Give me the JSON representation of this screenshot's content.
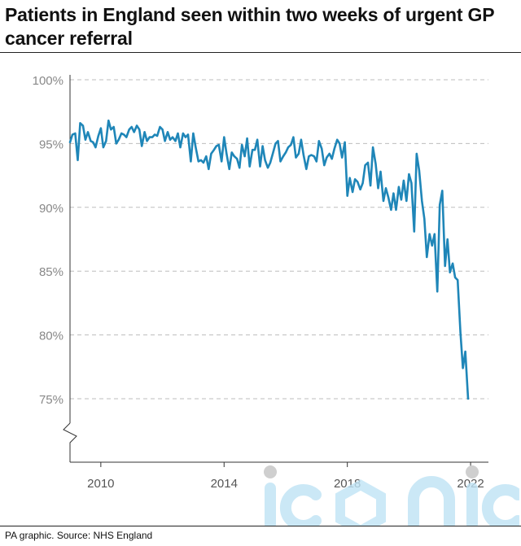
{
  "title": "Patients in England seen within two weeks of urgent GP cancer referral",
  "source": "PA graphic. Source: NHS England",
  "watermark": "iconic",
  "colors": {
    "line": "#1f86b8",
    "grid": "#bdbdbd",
    "axis": "#333333",
    "tick_text": "#888888"
  },
  "chart_data": {
    "type": "line",
    "title": "Patients in England seen within two weeks of urgent GP cancer referral",
    "xlabel": "",
    "ylabel": "",
    "y_ticks": [
      75,
      80,
      85,
      90,
      95,
      100
    ],
    "y_tick_labels": [
      "75%",
      "80%",
      "85%",
      "90%",
      "95%",
      "100%"
    ],
    "x_ticks": [
      2010,
      2014,
      2018,
      2022
    ],
    "x_tick_labels": [
      "2010",
      "2014",
      "2018",
      "2022"
    ],
    "xlim": [
      2009.0,
      2022.5
    ],
    "ylim": [
      70,
      101
    ],
    "y_axis_break": true,
    "grid": "horizontal dashed",
    "series": [
      {
        "values": [
          [
            2009.0,
            95.1
          ],
          [
            2009.08,
            95.7
          ],
          [
            2009.17,
            95.8
          ],
          [
            2009.25,
            93.7
          ],
          [
            2009.33,
            96.6
          ],
          [
            2009.42,
            96.4
          ],
          [
            2009.5,
            95.3
          ],
          [
            2009.58,
            95.9
          ],
          [
            2009.67,
            95.2
          ],
          [
            2009.75,
            95.1
          ],
          [
            2009.83,
            94.7
          ],
          [
            2009.92,
            95.6
          ],
          [
            2010.0,
            96.2
          ],
          [
            2010.08,
            94.7
          ],
          [
            2010.17,
            95.2
          ],
          [
            2010.25,
            96.8
          ],
          [
            2010.33,
            96.1
          ],
          [
            2010.42,
            96.3
          ],
          [
            2010.5,
            95.0
          ],
          [
            2010.58,
            95.3
          ],
          [
            2010.67,
            95.8
          ],
          [
            2010.75,
            95.7
          ],
          [
            2010.83,
            95.5
          ],
          [
            2010.92,
            96.1
          ],
          [
            2011.0,
            96.3
          ],
          [
            2011.08,
            95.9
          ],
          [
            2011.17,
            96.4
          ],
          [
            2011.25,
            96.1
          ],
          [
            2011.33,
            94.8
          ],
          [
            2011.42,
            95.9
          ],
          [
            2011.5,
            95.2
          ],
          [
            2011.58,
            95.5
          ],
          [
            2011.67,
            95.5
          ],
          [
            2011.75,
            95.7
          ],
          [
            2011.83,
            95.6
          ],
          [
            2011.92,
            96.3
          ],
          [
            2012.0,
            96.1
          ],
          [
            2012.08,
            95.2
          ],
          [
            2012.17,
            95.9
          ],
          [
            2012.25,
            95.3
          ],
          [
            2012.33,
            95.5
          ],
          [
            2012.42,
            95.2
          ],
          [
            2012.5,
            95.8
          ],
          [
            2012.58,
            94.7
          ],
          [
            2012.67,
            95.8
          ],
          [
            2012.75,
            95.5
          ],
          [
            2012.83,
            95.7
          ],
          [
            2012.92,
            93.6
          ],
          [
            2013.0,
            95.8
          ],
          [
            2013.08,
            94.7
          ],
          [
            2013.17,
            93.6
          ],
          [
            2013.25,
            93.7
          ],
          [
            2013.33,
            93.5
          ],
          [
            2013.42,
            94.0
          ],
          [
            2013.5,
            93.0
          ],
          [
            2013.58,
            94.2
          ],
          [
            2013.67,
            94.5
          ],
          [
            2013.75,
            94.8
          ],
          [
            2013.83,
            94.9
          ],
          [
            2013.92,
            93.6
          ],
          [
            2014.0,
            95.5
          ],
          [
            2014.08,
            94.2
          ],
          [
            2014.17,
            93.0
          ],
          [
            2014.25,
            94.3
          ],
          [
            2014.33,
            94.0
          ],
          [
            2014.42,
            93.8
          ],
          [
            2014.5,
            93.1
          ],
          [
            2014.58,
            94.9
          ],
          [
            2014.67,
            94.0
          ],
          [
            2014.75,
            95.4
          ],
          [
            2014.83,
            93.2
          ],
          [
            2014.92,
            94.5
          ],
          [
            2015.0,
            94.5
          ],
          [
            2015.08,
            95.3
          ],
          [
            2015.17,
            93.2
          ],
          [
            2015.25,
            94.8
          ],
          [
            2015.33,
            93.7
          ],
          [
            2015.42,
            93.1
          ],
          [
            2015.5,
            93.5
          ],
          [
            2015.58,
            94.2
          ],
          [
            2015.67,
            95.0
          ],
          [
            2015.75,
            95.2
          ],
          [
            2015.83,
            93.6
          ],
          [
            2015.92,
            94.0
          ],
          [
            2016.0,
            94.3
          ],
          [
            2016.08,
            94.7
          ],
          [
            2016.17,
            94.9
          ],
          [
            2016.25,
            95.5
          ],
          [
            2016.33,
            93.9
          ],
          [
            2016.42,
            94.2
          ],
          [
            2016.5,
            95.3
          ],
          [
            2016.58,
            94.1
          ],
          [
            2016.67,
            93.0
          ],
          [
            2016.75,
            94.0
          ],
          [
            2016.83,
            94.1
          ],
          [
            2016.92,
            94.0
          ],
          [
            2017.0,
            93.6
          ],
          [
            2017.08,
            95.2
          ],
          [
            2017.17,
            94.6
          ],
          [
            2017.25,
            93.3
          ],
          [
            2017.33,
            93.9
          ],
          [
            2017.42,
            94.2
          ],
          [
            2017.5,
            93.8
          ],
          [
            2017.58,
            94.6
          ],
          [
            2017.67,
            95.3
          ],
          [
            2017.75,
            95.0
          ],
          [
            2017.83,
            93.9
          ],
          [
            2017.92,
            95.1
          ],
          [
            2018.0,
            90.9
          ],
          [
            2018.08,
            92.3
          ],
          [
            2018.17,
            91.2
          ],
          [
            2018.25,
            92.2
          ],
          [
            2018.33,
            92.0
          ],
          [
            2018.42,
            91.4
          ],
          [
            2018.5,
            91.9
          ],
          [
            2018.58,
            93.3
          ],
          [
            2018.67,
            93.5
          ],
          [
            2018.75,
            91.7
          ],
          [
            2018.83,
            94.7
          ],
          [
            2018.92,
            93.4
          ],
          [
            2019.0,
            91.5
          ],
          [
            2019.08,
            92.8
          ],
          [
            2019.17,
            90.5
          ],
          [
            2019.25,
            91.5
          ],
          [
            2019.33,
            90.8
          ],
          [
            2019.42,
            89.8
          ],
          [
            2019.5,
            91.1
          ],
          [
            2019.58,
            89.8
          ],
          [
            2019.67,
            91.6
          ],
          [
            2019.75,
            90.6
          ],
          [
            2019.83,
            92.1
          ],
          [
            2019.92,
            90.5
          ],
          [
            2020.0,
            92.6
          ],
          [
            2020.08,
            91.9
          ],
          [
            2020.17,
            88.1
          ],
          [
            2020.25,
            94.2
          ],
          [
            2020.33,
            92.9
          ],
          [
            2020.42,
            90.5
          ],
          [
            2020.5,
            89.1
          ],
          [
            2020.58,
            86.1
          ],
          [
            2020.67,
            87.9
          ],
          [
            2020.75,
            87.0
          ],
          [
            2020.83,
            87.9
          ],
          [
            2020.92,
            83.4
          ],
          [
            2021.0,
            90.2
          ],
          [
            2021.08,
            91.3
          ],
          [
            2021.17,
            85.4
          ],
          [
            2021.25,
            87.5
          ],
          [
            2021.33,
            84.9
          ],
          [
            2021.42,
            85.6
          ],
          [
            2021.5,
            84.5
          ],
          [
            2021.58,
            84.3
          ],
          [
            2021.67,
            80.2
          ],
          [
            2021.75,
            77.4
          ],
          [
            2021.83,
            78.7
          ],
          [
            2021.92,
            75.0
          ]
        ]
      }
    ]
  }
}
